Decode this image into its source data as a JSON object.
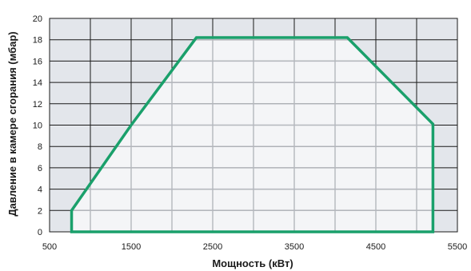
{
  "chart_data": {
    "type": "area",
    "title": "",
    "xlabel": "Мощность (кВт)",
    "ylabel": "Давление в камере сгорания (мбар)",
    "xlim": [
      500,
      5500
    ],
    "ylim": [
      0,
      20
    ],
    "x_tick_labels": [
      "500",
      "1500",
      "2500",
      "3500",
      "4500",
      "5500"
    ],
    "y_tick_labels": [
      "0",
      "2",
      "4",
      "6",
      "8",
      "10",
      "12",
      "14",
      "16",
      "18",
      "20"
    ],
    "x_gridlines": [
      500,
      1000,
      1500,
      2000,
      2500,
      3000,
      3500,
      4000,
      4500,
      5000,
      5500
    ],
    "y_gridlines": [
      0,
      2,
      4,
      6,
      8,
      10,
      12,
      14,
      16,
      18,
      20
    ],
    "grid": true,
    "series": [
      {
        "x": [
          770,
          770,
          1500,
          2300,
          4150,
          5200,
          5200
        ],
        "y": [
          0,
          2,
          10,
          18.2,
          18.2,
          10.1,
          0
        ]
      }
    ],
    "colors": {
      "outline": "#1aa06b",
      "area_fill": "#f4f5f7",
      "background_fill": "#e3e6eb",
      "grid_dark": "#1a1a1a",
      "grid_inside": "#b4b7bd"
    }
  }
}
